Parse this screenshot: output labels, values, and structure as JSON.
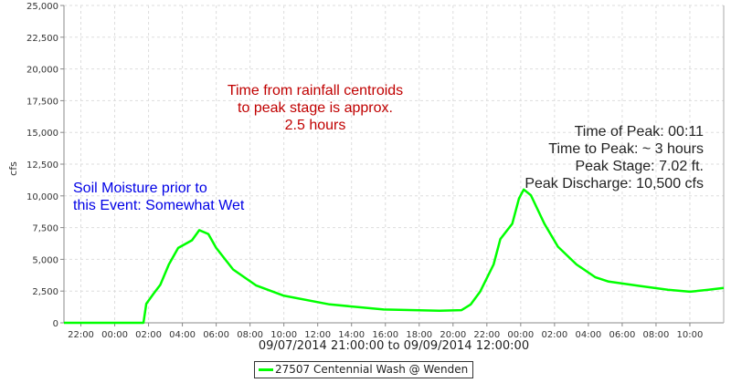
{
  "chart_data": {
    "type": "line",
    "xlabel": "09/07/2014 21:00:00 to 09/09/2014 12:00:00",
    "ylabel": "cfs",
    "xlim": [
      "2014-09-07 21:00",
      "2014-09-09 12:00"
    ],
    "ylim": [
      0,
      25000
    ],
    "y_ticks": [
      0,
      2500,
      5000,
      7500,
      10000,
      12500,
      15000,
      17500,
      20000,
      22500,
      25000
    ],
    "x_tick_labels": [
      "22:00",
      "00:00",
      "02:00",
      "04:00",
      "06:00",
      "08:00",
      "10:00",
      "12:00",
      "14:00",
      "16:00",
      "18:00",
      "20:00",
      "22:00",
      "00:00",
      "02:00",
      "04:00",
      "06:00",
      "08:00",
      "10:00"
    ],
    "grid": true,
    "legend_position": "bottom",
    "series": [
      {
        "name": "27507 Centennial Wash @ Wenden",
        "color": "#00ff00",
        "points": [
          [
            "2014-09-07 21:00",
            0
          ],
          [
            "2014-09-08 01:42",
            0
          ],
          [
            "2014-09-08 01:52",
            1500
          ],
          [
            "2014-09-08 02:18",
            2300
          ],
          [
            "2014-09-08 02:42",
            3000
          ],
          [
            "2014-09-08 03:12",
            4600
          ],
          [
            "2014-09-08 03:45",
            5900
          ],
          [
            "2014-09-08 04:34",
            6500
          ],
          [
            "2014-09-08 05:00",
            7300
          ],
          [
            "2014-09-08 05:32",
            7000
          ],
          [
            "2014-09-08 06:00",
            5900
          ],
          [
            "2014-09-08 07:00",
            4200
          ],
          [
            "2014-09-08 08:21",
            2950
          ],
          [
            "2014-09-08 09:58",
            2150
          ],
          [
            "2014-09-08 12:42",
            1450
          ],
          [
            "2014-09-08 15:54",
            1050
          ],
          [
            "2014-09-08 19:12",
            950
          ],
          [
            "2014-09-08 20:30",
            1000
          ],
          [
            "2014-09-08 21:03",
            1450
          ],
          [
            "2014-09-08 21:36",
            2450
          ],
          [
            "2014-09-08 22:24",
            4600
          ],
          [
            "2014-09-08 22:48",
            6600
          ],
          [
            "2014-09-08 23:30",
            7800
          ],
          [
            "2014-09-08 23:54",
            9800
          ],
          [
            "2014-09-09 00:11",
            10500
          ],
          [
            "2014-09-09 00:36",
            10050
          ],
          [
            "2014-09-09 01:24",
            7800
          ],
          [
            "2014-09-09 02:12",
            6000
          ],
          [
            "2014-09-09 03:18",
            4600
          ],
          [
            "2014-09-09 04:24",
            3600
          ],
          [
            "2014-09-09 05:12",
            3250
          ],
          [
            "2014-09-09 07:03",
            2900
          ],
          [
            "2014-09-09 08:42",
            2600
          ],
          [
            "2014-09-09 10:00",
            2450
          ],
          [
            "2014-09-09 11:06",
            2600
          ],
          [
            "2014-09-09 12:00",
            2750
          ]
        ]
      }
    ],
    "annotations": {
      "rainfall": "Time from rainfall centroids\nto peak stage is approx.\n2.5 hours",
      "soil": "Soil Moisture prior to\nthis Event: Somewhat Wet",
      "peak": "Time of Peak: 00:11\nTime to Peak: ~ 3 hours\nPeak Stage: 7.02 ft.\nPeak Discharge: 10,500 cfs"
    },
    "annotation_colors": {
      "rainfall": "#c00000",
      "soil": "#0000e6",
      "peak": "#222222"
    }
  }
}
